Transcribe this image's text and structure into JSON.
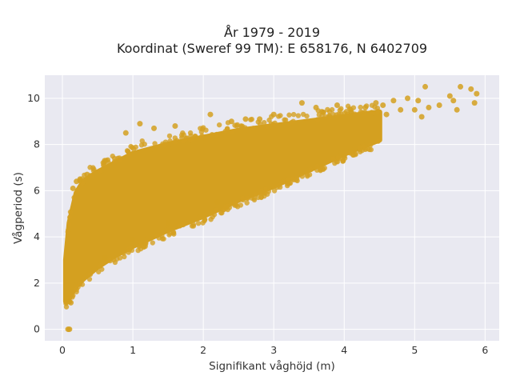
{
  "chart_data": {
    "type": "scatter",
    "title_line1": "År 1979 - 2019",
    "title_line2": "Koordinat (Sweref 99 TM): E 658176, N 6402709",
    "xlabel": "Signifikant våghöjd (m)",
    "ylabel": "Vågperiod (s)",
    "xlim": [
      -0.25,
      6.2
    ],
    "ylim": [
      -0.5,
      11
    ],
    "xticks": [
      0,
      1,
      2,
      3,
      4,
      5,
      6
    ],
    "yticks": [
      0,
      2,
      4,
      6,
      8,
      10
    ],
    "grid": true,
    "marker_color": "#D4A020",
    "plot_background": "#E9E9F1",
    "density_band": {
      "x": [
        0.05,
        0.1,
        0.2,
        0.3,
        0.5,
        0.75,
        1.0,
        1.5,
        2.0,
        2.5,
        3.0,
        3.5,
        4.0,
        4.5
      ],
      "y_low": [
        1.2,
        1.4,
        1.9,
        2.2,
        2.7,
        3.2,
        3.6,
        4.3,
        4.9,
        5.6,
        6.2,
        6.9,
        7.6,
        8.2
      ],
      "y_high": [
        3.0,
        4.6,
        5.9,
        6.4,
        6.8,
        7.2,
        7.6,
        8.0,
        8.3,
        8.6,
        8.8,
        9.0,
        9.2,
        9.4
      ]
    },
    "points": [
      {
        "x": 0.08,
        "y": 0.0
      },
      {
        "x": 0.1,
        "y": 0.0
      },
      {
        "x": 0.1,
        "y": 1.2
      },
      {
        "x": 0.12,
        "y": 1.15
      },
      {
        "x": 0.15,
        "y": 6.1
      },
      {
        "x": 0.2,
        "y": 6.4
      },
      {
        "x": 0.25,
        "y": 6.5
      },
      {
        "x": 0.35,
        "y": 6.7
      },
      {
        "x": 0.6,
        "y": 7.3
      },
      {
        "x": 0.9,
        "y": 8.5
      },
      {
        "x": 1.1,
        "y": 8.9
      },
      {
        "x": 1.3,
        "y": 8.7
      },
      {
        "x": 1.6,
        "y": 8.8
      },
      {
        "x": 2.1,
        "y": 9.3
      },
      {
        "x": 2.4,
        "y": 9.0
      },
      {
        "x": 2.6,
        "y": 9.1
      },
      {
        "x": 2.8,
        "y": 9.1
      },
      {
        "x": 3.0,
        "y": 9.3
      },
      {
        "x": 3.4,
        "y": 9.8
      },
      {
        "x": 3.6,
        "y": 9.6
      },
      {
        "x": 3.7,
        "y": 9.4
      },
      {
        "x": 3.9,
        "y": 9.7
      },
      {
        "x": 4.1,
        "y": 9.4
      },
      {
        "x": 4.3,
        "y": 9.6
      },
      {
        "x": 4.45,
        "y": 9.8
      },
      {
        "x": 4.55,
        "y": 9.7
      },
      {
        "x": 4.6,
        "y": 9.3
      },
      {
        "x": 4.7,
        "y": 9.9
      },
      {
        "x": 4.8,
        "y": 9.5
      },
      {
        "x": 4.9,
        "y": 10.0
      },
      {
        "x": 5.0,
        "y": 9.5
      },
      {
        "x": 5.05,
        "y": 9.9
      },
      {
        "x": 5.1,
        "y": 9.2
      },
      {
        "x": 5.15,
        "y": 10.5
      },
      {
        "x": 5.2,
        "y": 9.6
      },
      {
        "x": 5.35,
        "y": 9.7
      },
      {
        "x": 5.5,
        "y": 10.1
      },
      {
        "x": 5.55,
        "y": 9.9
      },
      {
        "x": 5.6,
        "y": 9.5
      },
      {
        "x": 5.65,
        "y": 10.5
      },
      {
        "x": 5.8,
        "y": 10.4
      },
      {
        "x": 5.85,
        "y": 9.8
      },
      {
        "x": 5.88,
        "y": 10.2
      },
      {
        "x": 3.2,
        "y": 6.3
      },
      {
        "x": 2.2,
        "y": 5.5
      },
      {
        "x": 1.5,
        "y": 4.6
      },
      {
        "x": 1.0,
        "y": 3.9
      },
      {
        "x": 0.6,
        "y": 3.1
      },
      {
        "x": 4.0,
        "y": 7.5
      }
    ]
  }
}
